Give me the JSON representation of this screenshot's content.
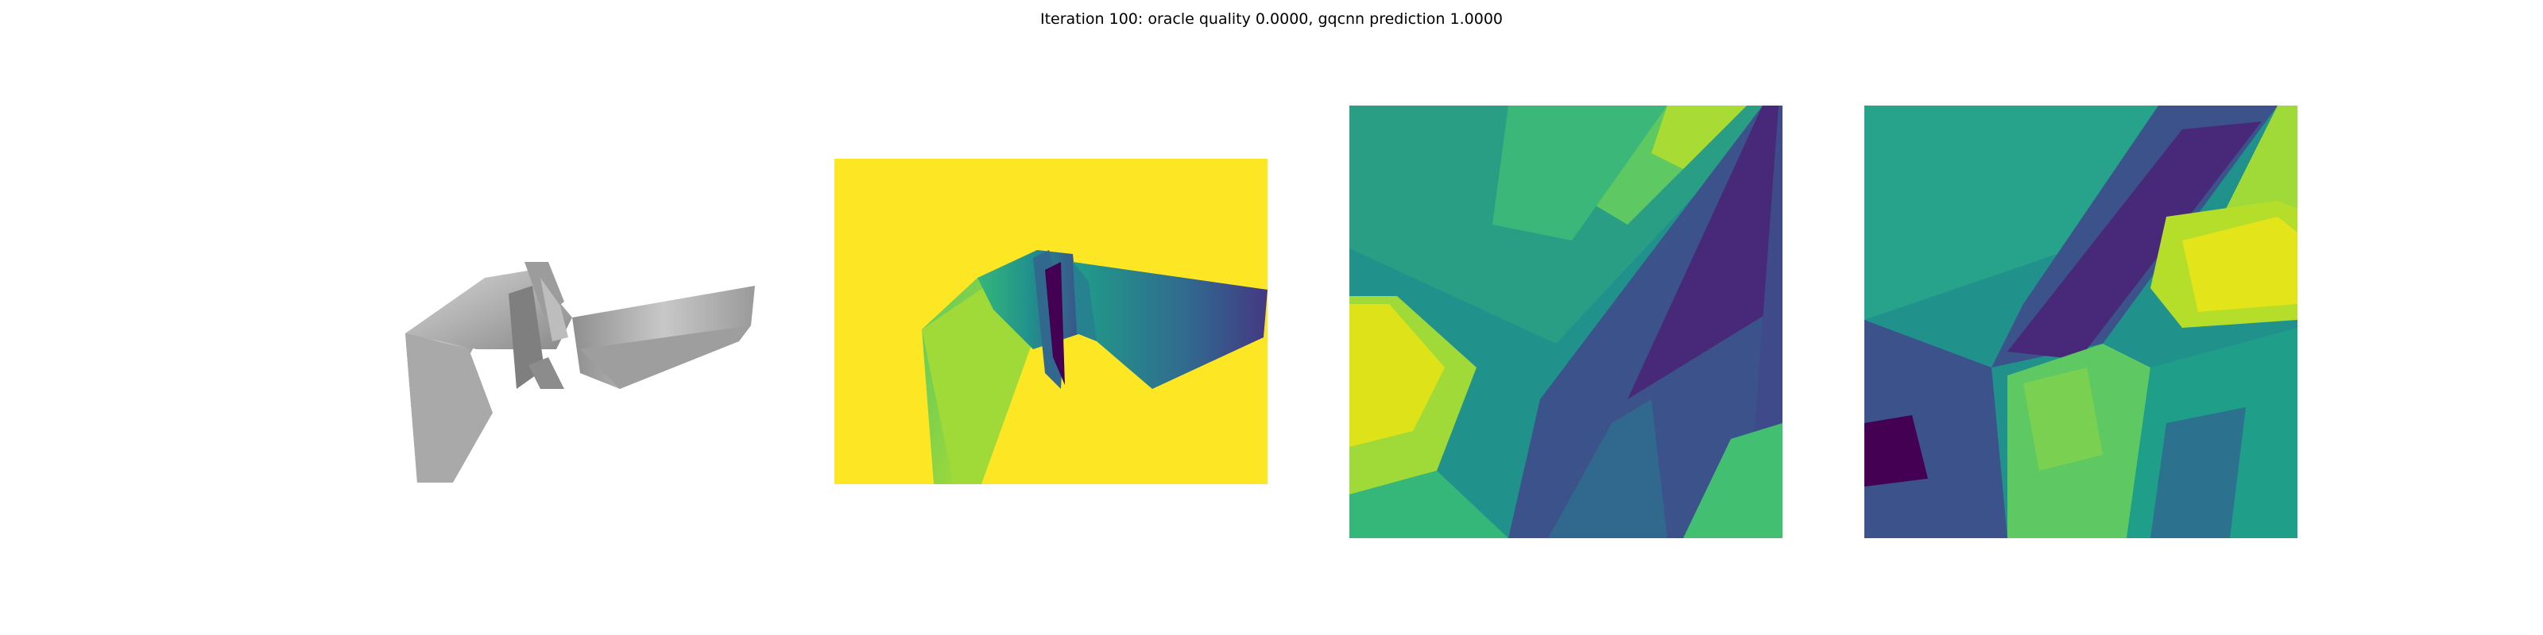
{
  "figure": {
    "title": "Iteration 100: oracle quality 0.0000, gqcnn prediction 1.0000"
  },
  "panels": [
    {
      "kind": "rendered-object-view",
      "icon": "object-mesh-image"
    },
    {
      "kind": "depth-image-view",
      "icon": "depth-map-image",
      "colormap": "viridis"
    },
    {
      "kind": "depth-crop-view",
      "icon": "depth-crop-image",
      "colormap": "viridis"
    },
    {
      "kind": "depth-crop-view",
      "icon": "depth-crop-image",
      "colormap": "viridis"
    }
  ],
  "colors": {
    "background": "#ffffff",
    "viridis_dark": "#440154",
    "viridis_blue": "#3b528b",
    "viridis_teal": "#21918c",
    "viridis_green": "#5ec962",
    "viridis_yellow": "#fde725",
    "mesh_gray": "#b0b0b0"
  }
}
